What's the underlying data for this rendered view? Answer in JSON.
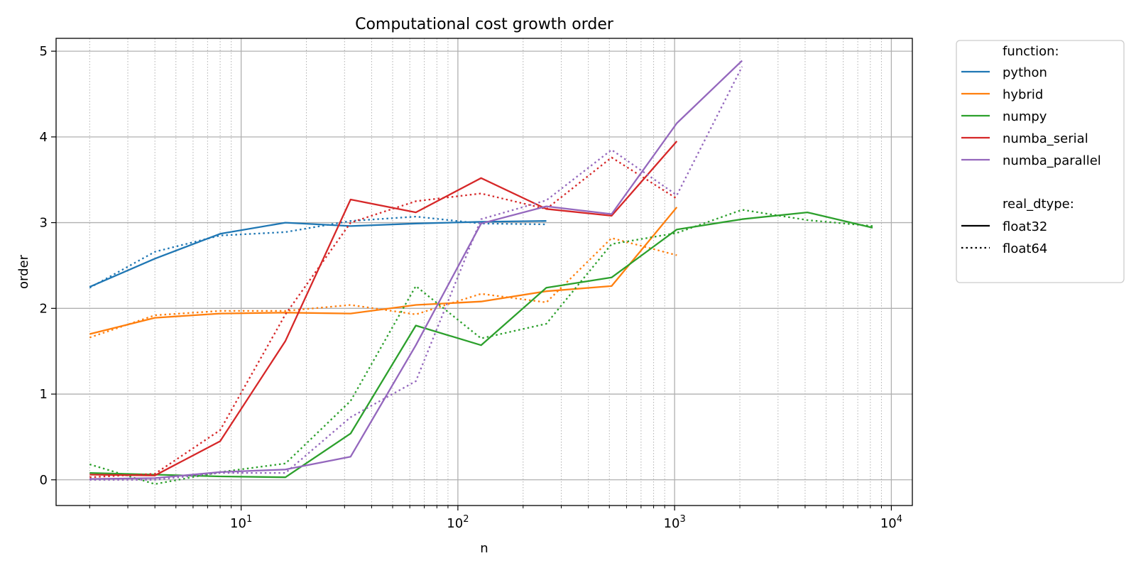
{
  "chart_data": {
    "type": "line",
    "title": "Computational cost growth order",
    "xlabel": "n",
    "ylabel": "order",
    "xscale": "log",
    "xlim": [
      1.4,
      12500
    ],
    "ylim": [
      -0.3,
      5.15
    ],
    "xticks_major": [
      {
        "value": 10,
        "base": "10",
        "exp": "1"
      },
      {
        "value": 100,
        "base": "10",
        "exp": "2"
      },
      {
        "value": 1000,
        "base": "10",
        "exp": "3"
      },
      {
        "value": 10000,
        "base": "10",
        "exp": "4"
      }
    ],
    "yticks": [
      "0",
      "1",
      "2",
      "3",
      "4",
      "5"
    ],
    "grid": true,
    "legend": {
      "placement": "outside-right-top",
      "function_title": "function:",
      "dtype_title": "real_dtype:",
      "dtype_entries": [
        {
          "name": "float32",
          "dash": "solid"
        },
        {
          "name": "float64",
          "dash": "dotted"
        }
      ]
    },
    "colors": {
      "python": "#1f77b4",
      "hybrid": "#ff7f0e",
      "numpy": "#2ca02c",
      "numba_serial": "#d62728",
      "numba_parallel": "#9467bd"
    },
    "series": [
      {
        "name": "python",
        "dtype": "float32",
        "x": [
          2,
          4,
          8,
          16,
          32,
          64,
          128,
          256
        ],
        "y": [
          2.25,
          2.58,
          2.87,
          3.0,
          2.96,
          2.99,
          3.01,
          3.02
        ]
      },
      {
        "name": "python",
        "dtype": "float64",
        "x": [
          2,
          4,
          8,
          16,
          32,
          64,
          128,
          256
        ],
        "y": [
          2.24,
          2.66,
          2.85,
          2.89,
          3.02,
          3.07,
          2.99,
          2.98
        ]
      },
      {
        "name": "hybrid",
        "dtype": "float32",
        "x": [
          2,
          4,
          8,
          16,
          32,
          64,
          128,
          256,
          512,
          1024
        ],
        "y": [
          1.7,
          1.89,
          1.94,
          1.95,
          1.94,
          2.04,
          2.08,
          2.2,
          2.26,
          3.18
        ]
      },
      {
        "name": "hybrid",
        "dtype": "float64",
        "x": [
          2,
          4,
          8,
          16,
          32,
          64,
          128,
          256,
          512,
          1024
        ],
        "y": [
          1.66,
          1.92,
          1.97,
          1.97,
          2.04,
          1.93,
          2.17,
          2.07,
          2.82,
          2.62
        ]
      },
      {
        "name": "numpy",
        "dtype": "float32",
        "x": [
          2,
          4,
          8,
          16,
          32,
          64,
          128,
          256,
          512,
          1024,
          2048,
          4096,
          8192
        ],
        "y": [
          0.08,
          0.06,
          0.04,
          0.03,
          0.54,
          1.8,
          1.57,
          2.24,
          2.36,
          2.92,
          3.04,
          3.12,
          2.94
        ]
      },
      {
        "name": "numpy",
        "dtype": "float64",
        "x": [
          2,
          4,
          8,
          16,
          32,
          64,
          128,
          256,
          512,
          1024,
          2048,
          4096,
          8192
        ],
        "y": [
          0.18,
          -0.05,
          0.09,
          0.19,
          0.92,
          2.26,
          1.65,
          1.82,
          2.75,
          2.88,
          3.15,
          3.03,
          2.96
        ]
      },
      {
        "name": "numba_serial",
        "dtype": "float32",
        "x": [
          2,
          4,
          8,
          16,
          32,
          64,
          128,
          256,
          512,
          1024
        ],
        "y": [
          0.06,
          0.05,
          0.45,
          1.62,
          3.27,
          3.12,
          3.52,
          3.16,
          3.08,
          3.95
        ]
      },
      {
        "name": "numba_serial",
        "dtype": "float64",
        "x": [
          2,
          4,
          8,
          16,
          32,
          64,
          128,
          256,
          512,
          1024
        ],
        "y": [
          0.03,
          0.07,
          0.58,
          1.93,
          3.0,
          3.25,
          3.34,
          3.16,
          3.76,
          3.28
        ]
      },
      {
        "name": "numba_parallel",
        "dtype": "float32",
        "x": [
          2,
          4,
          8,
          16,
          32,
          64,
          128,
          256,
          512,
          1024,
          2048
        ],
        "y": [
          0.01,
          0.02,
          0.09,
          0.12,
          0.27,
          1.57,
          2.99,
          3.19,
          3.1,
          4.16,
          4.89
        ]
      },
      {
        "name": "numba_parallel",
        "dtype": "float64",
        "x": [
          2,
          4,
          8,
          16,
          32,
          64,
          128,
          256,
          512,
          1024,
          2048
        ],
        "y": [
          0.0,
          0.0,
          0.08,
          0.08,
          0.73,
          1.15,
          3.04,
          3.26,
          3.85,
          3.32,
          4.82
        ]
      }
    ]
  }
}
